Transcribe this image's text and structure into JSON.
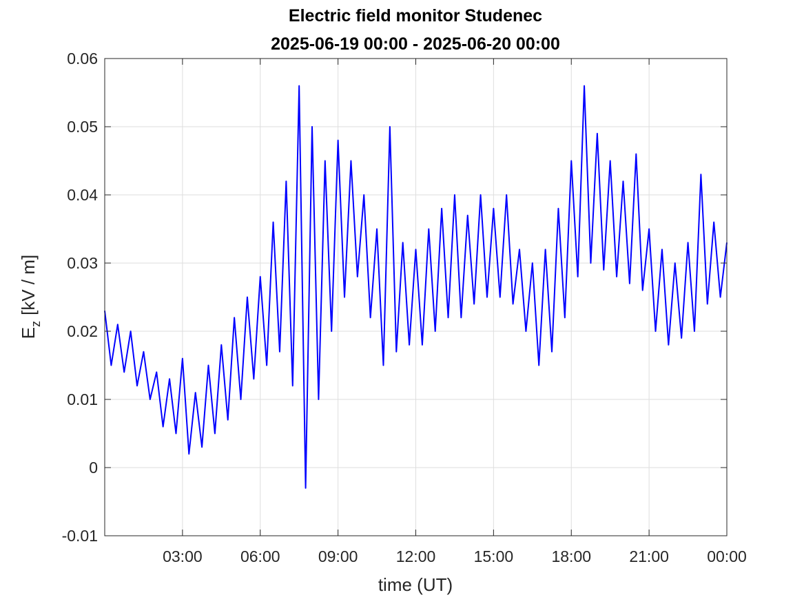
{
  "chart_data": {
    "type": "line",
    "title": "Electric field monitor Studenec",
    "subtitle": "2025-06-19 00:00 - 2025-06-20 00:00",
    "xlabel": "time (UT)",
    "ylabel": {
      "symbol": "E",
      "subscript": "z",
      "unit": "[kV / m]"
    },
    "xlim": [
      0,
      24
    ],
    "xticks": [
      {
        "value": 3,
        "label": "03:00"
      },
      {
        "value": 6,
        "label": "06:00"
      },
      {
        "value": 9,
        "label": "09:00"
      },
      {
        "value": 12,
        "label": "12:00"
      },
      {
        "value": 15,
        "label": "15:00"
      },
      {
        "value": 18,
        "label": "18:00"
      },
      {
        "value": 21,
        "label": "21:00"
      },
      {
        "value": 24,
        "label": "00:00"
      }
    ],
    "ylim": [
      -0.01,
      0.06
    ],
    "yticks": [
      -0.01,
      0,
      0.01,
      0.02,
      0.03,
      0.04,
      0.05,
      0.06
    ],
    "grid": true,
    "x": [
      0,
      0.25,
      0.5,
      0.75,
      1,
      1.25,
      1.5,
      1.75,
      2,
      2.25,
      2.5,
      2.75,
      3,
      3.25,
      3.5,
      3.75,
      4,
      4.25,
      4.5,
      4.75,
      5,
      5.25,
      5.5,
      5.75,
      6,
      6.25,
      6.5,
      6.75,
      7,
      7.25,
      7.5,
      7.75,
      8,
      8.25,
      8.5,
      8.75,
      9,
      9.25,
      9.5,
      9.75,
      10,
      10.25,
      10.5,
      10.75,
      11,
      11.25,
      11.5,
      11.75,
      12,
      12.25,
      12.5,
      12.75,
      13,
      13.25,
      13.5,
      13.75,
      14,
      14.25,
      14.5,
      14.75,
      15,
      15.25,
      15.5,
      15.75,
      16,
      16.25,
      16.5,
      16.75,
      17,
      17.25,
      17.5,
      17.75,
      18,
      18.25,
      18.5,
      18.75,
      19,
      19.25,
      19.5,
      19.75,
      20,
      20.25,
      20.5,
      20.75,
      21,
      21.25,
      21.5,
      21.75,
      22,
      22.25,
      22.5,
      22.75,
      23,
      23.25,
      23.5,
      23.75,
      24
    ],
    "series": [
      {
        "name": "Ez",
        "color": "#0000ff",
        "values": [
          0.023,
          0.015,
          0.021,
          0.014,
          0.02,
          0.012,
          0.017,
          0.01,
          0.014,
          0.006,
          0.013,
          0.005,
          0.016,
          0.002,
          0.011,
          0.003,
          0.015,
          0.005,
          0.018,
          0.007,
          0.022,
          0.01,
          0.025,
          0.013,
          0.028,
          0.015,
          0.036,
          0.017,
          0.042,
          0.012,
          0.056,
          -0.003,
          0.05,
          0.01,
          0.045,
          0.02,
          0.048,
          0.025,
          0.045,
          0.028,
          0.04,
          0.022,
          0.035,
          0.015,
          0.05,
          0.017,
          0.033,
          0.018,
          0.032,
          0.018,
          0.035,
          0.02,
          0.038,
          0.022,
          0.04,
          0.022,
          0.037,
          0.024,
          0.04,
          0.025,
          0.038,
          0.025,
          0.04,
          0.024,
          0.032,
          0.02,
          0.03,
          0.015,
          0.032,
          0.017,
          0.038,
          0.022,
          0.045,
          0.028,
          0.056,
          0.03,
          0.049,
          0.029,
          0.045,
          0.028,
          0.042,
          0.027,
          0.046,
          0.026,
          0.035,
          0.02,
          0.032,
          0.018,
          0.03,
          0.019,
          0.033,
          0.02,
          0.043,
          0.024,
          0.036,
          0.025,
          0.033
        ]
      }
    ]
  }
}
